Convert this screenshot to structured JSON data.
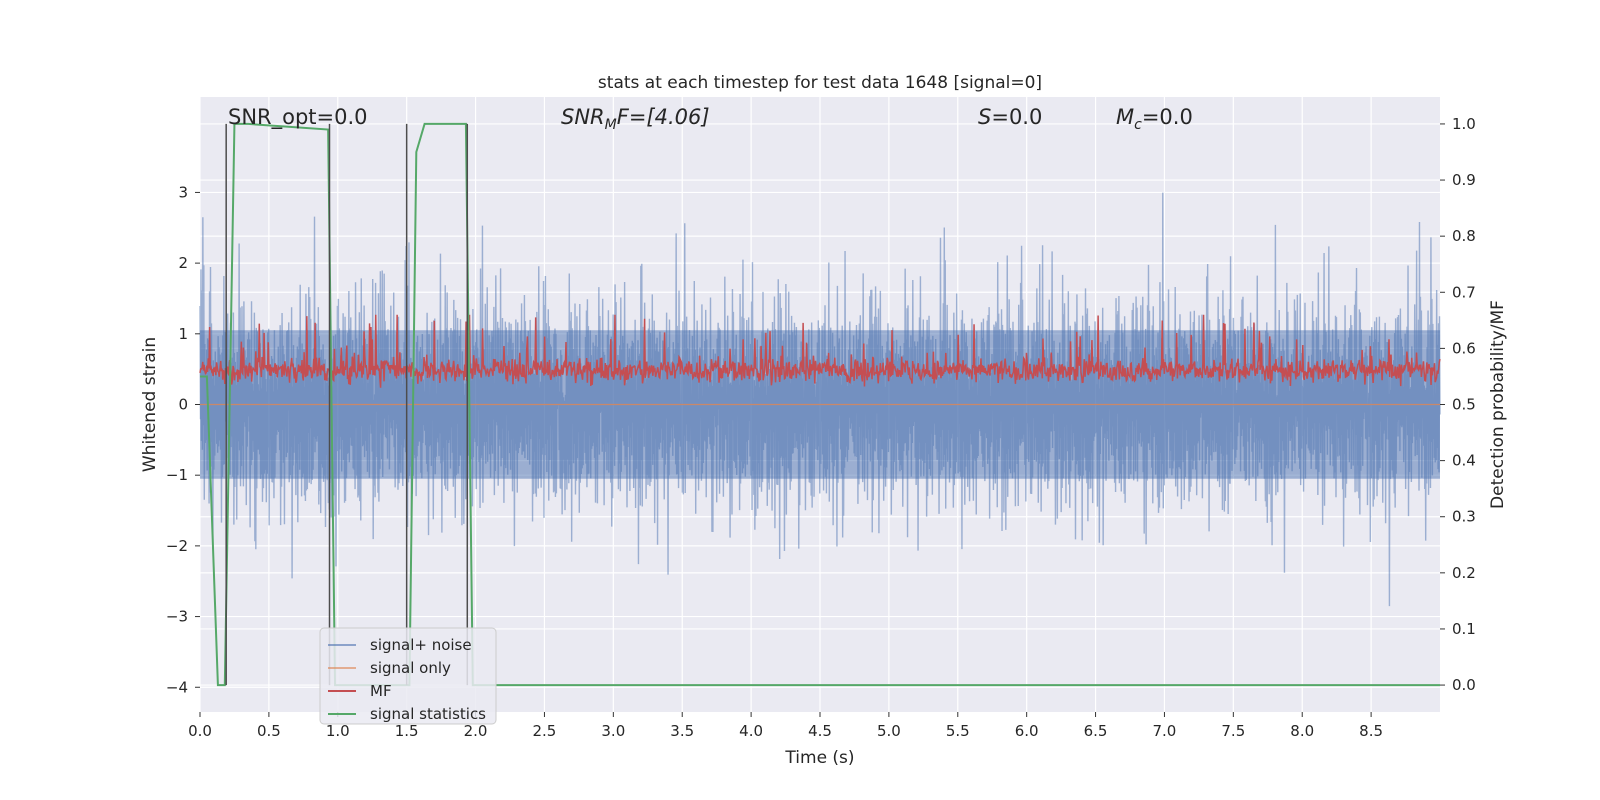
{
  "chart_data": {
    "type": "line",
    "title": "stats at each timestep for test data 1648 [signal=0]",
    "xlabel": "Time (s)",
    "ylabel": "Whitened strain",
    "y2label": "Detection probability/MF",
    "xlim": [
      0.0,
      9.0
    ],
    "ylim": [
      -4.35,
      4.35
    ],
    "y2lim": [
      -0.048,
      1.048
    ],
    "xticks": [
      "0.0",
      "0.5",
      "1.0",
      "1.5",
      "2.0",
      "2.5",
      "3.0",
      "3.5",
      "4.0",
      "4.5",
      "5.0",
      "5.5",
      "6.0",
      "6.5",
      "7.0",
      "7.5",
      "8.0",
      "8.5"
    ],
    "yticks": [
      "3",
      "2",
      "1",
      "0",
      "−1",
      "−2",
      "−3",
      "−4"
    ],
    "y2ticks": [
      "1.0",
      "0.9",
      "0.8",
      "0.7",
      "0.6",
      "0.5",
      "0.4",
      "0.3",
      "0.2",
      "0.1",
      "0.0"
    ],
    "grid": true,
    "legend_position": "lower-left",
    "annotations": {
      "snr_opt": "SNR_opt=0.0",
      "snr_mf_main": "SNR",
      "snr_mf_sub": "M",
      "snr_mf_rest": "F=[4.06]",
      "s_main": "S",
      "s_rest": "=0.0",
      "mc_main": "M",
      "mc_sub": "c",
      "mc_rest": "=0.0"
    },
    "series": [
      {
        "name": "signal+ noise",
        "color": "#4c72b0",
        "axis": "left",
        "kind": "noise",
        "amplitude": 3.5,
        "opacity": 0.5
      },
      {
        "name": "signal only",
        "color": "#dd8452",
        "axis": "left",
        "kind": "flat",
        "values": [
          0,
          0
        ]
      },
      {
        "name": "MF",
        "color": "#c44e52",
        "axis": "right",
        "kind": "mf",
        "baseline": 0.56,
        "spread": 0.1
      },
      {
        "name": "signal statistics",
        "color": "#55a868",
        "axis": "right",
        "x": [
          0.0,
          0.05,
          0.13,
          0.18,
          0.25,
          0.35,
          0.93,
          0.98,
          1.52,
          1.57,
          1.63,
          1.93,
          1.98,
          9.0
        ],
        "y": [
          0.55,
          0.55,
          0.0,
          0.0,
          1.0,
          1.0,
          0.99,
          0.0,
          0.0,
          0.95,
          1.0,
          1.0,
          0.0,
          0.0
        ]
      }
    ],
    "vertical_markers": [
      0.19,
      0.94,
      1.5,
      1.94
    ],
    "colors": {
      "plot_bg": "#eaeaf2",
      "grid": "#ffffff",
      "marker": "#4d4d4d"
    }
  }
}
